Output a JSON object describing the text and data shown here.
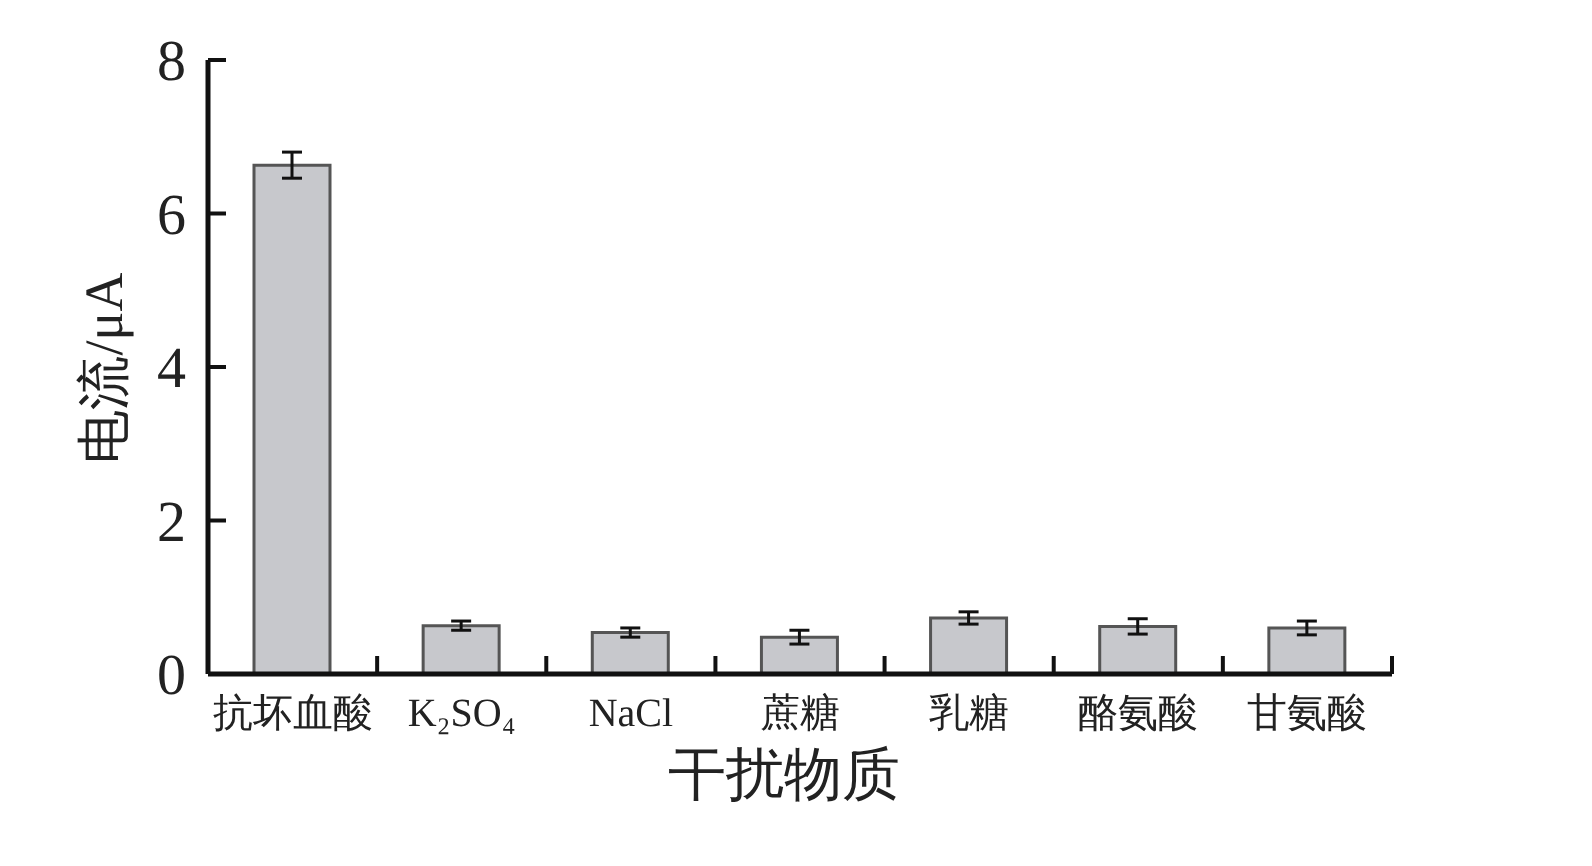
{
  "chart_data": {
    "type": "bar",
    "xlabel": "干扰物质",
    "ylabel": "电流/μA",
    "categories": [
      "抗坏血酸",
      "K₂SO₄",
      "NaCl",
      "蔗糖",
      "乳糖",
      "酪氨酸",
      "甘氨酸"
    ],
    "values": [
      6.63,
      0.63,
      0.54,
      0.48,
      0.73,
      0.62,
      0.6
    ],
    "errors": [
      0.17,
      0.06,
      0.06,
      0.09,
      0.08,
      0.1,
      0.09
    ],
    "color": "#c7c8cc",
    "ylim": [
      0,
      8
    ],
    "yticks": [
      0,
      2,
      4,
      6,
      8
    ]
  }
}
